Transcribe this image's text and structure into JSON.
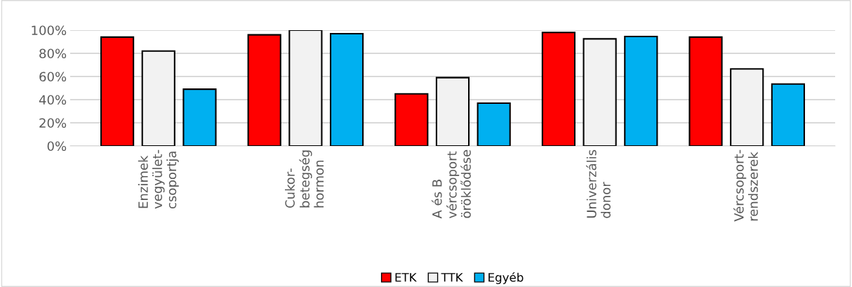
{
  "chart_data": {
    "type": "bar",
    "categories": [
      "Enzimek\nvegyület-\ncsoportja",
      "Cukor-\nbetegség\nhormon",
      "A és B\nvércsoport\nöröklődése",
      "Univerzális\ndonor",
      "Vércsoport-\nrendszerek"
    ],
    "series": [
      {
        "name": "ETK",
        "color": "#ff0000",
        "values": [
          94,
          96,
          45,
          98,
          94
        ]
      },
      {
        "name": "TTK",
        "color": "#f2f2f2",
        "values": [
          82,
          100,
          59,
          92.5,
          66.5
        ]
      },
      {
        "name": "Egyéb",
        "color": "#00b0f0",
        "values": [
          49,
          97,
          37,
          94.5,
          53.5
        ]
      }
    ],
    "ylim": [
      0,
      100
    ],
    "yticks": [
      {
        "value": 0,
        "label": "0%"
      },
      {
        "value": 20,
        "label": "20%"
      },
      {
        "value": 40,
        "label": "40%"
      },
      {
        "value": 60,
        "label": "60%"
      },
      {
        "value": 80,
        "label": "80%"
      },
      {
        "value": 100,
        "label": "100%"
      }
    ],
    "grid": "y",
    "legend": "bottom"
  }
}
